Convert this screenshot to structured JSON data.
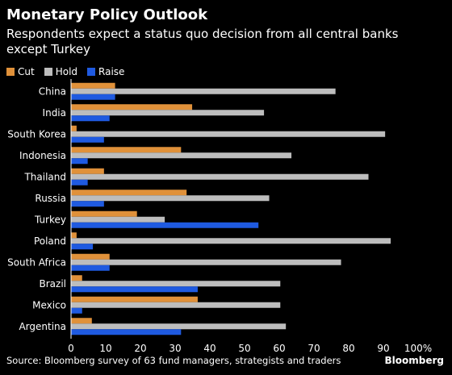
{
  "title": "Monetary Policy Outlook",
  "subtitle": "Respondents expect a status quo decision from all central banks except Turkey",
  "source": "Source: Bloomberg survey of 63 fund managers, strategists and traders",
  "brand": "Bloomberg",
  "colors": {
    "cut": "#E0913A",
    "hold": "#BDBDBD",
    "raise": "#1F5AE0",
    "axis": "#ffffff",
    "gridline": "#333333"
  },
  "chart_data": {
    "type": "bar",
    "orientation": "horizontal",
    "categories": [
      "China",
      "India",
      "South Korea",
      "Indonesia",
      "Thailand",
      "Russia",
      "Turkey",
      "Poland",
      "South Africa",
      "Brazil",
      "Mexico",
      "Argentina"
    ],
    "series": [
      {
        "name": "Cut",
        "values": [
          12.7,
          34.9,
          1.6,
          31.7,
          9.5,
          33.3,
          19.0,
          1.6,
          11.1,
          3.2,
          36.5,
          6.0
        ]
      },
      {
        "name": "Hold",
        "values": [
          76.2,
          55.6,
          90.5,
          63.5,
          85.7,
          57.1,
          27.0,
          92.1,
          77.8,
          60.3,
          60.3,
          61.9
        ]
      },
      {
        "name": "Raise",
        "values": [
          12.7,
          11.1,
          9.5,
          4.8,
          4.8,
          9.5,
          54.0,
          6.3,
          11.1,
          36.5,
          3.2,
          31.7
        ]
      }
    ],
    "x_ticks": [
      "0",
      "10",
      "20",
      "30",
      "40",
      "50",
      "60",
      "70",
      "80",
      "90",
      "100%"
    ],
    "xlim": [
      0,
      100
    ],
    "legend_position": "top-left",
    "grid": false
  }
}
